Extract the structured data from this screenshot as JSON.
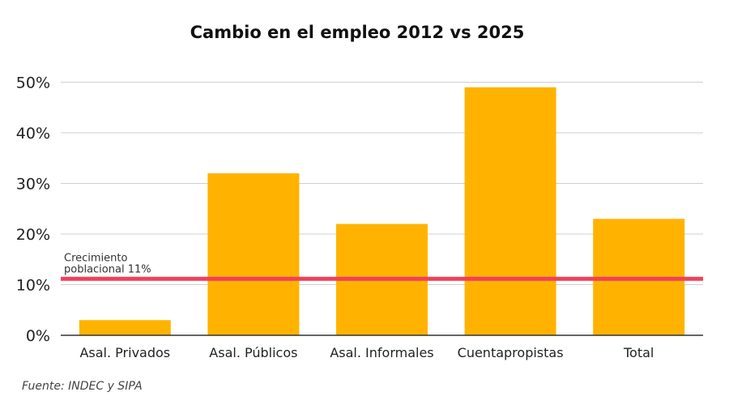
{
  "chart_data": {
    "type": "bar",
    "title": "Cambio en el empleo 2012 vs 2025",
    "categories": [
      "Asal. Privados",
      "Asal. Públicos",
      "Asal. Informales",
      "Cuentapropistas",
      "Total"
    ],
    "values": [
      3,
      32,
      22,
      49,
      23
    ],
    "unit": "%",
    "ylim": [
      0,
      50
    ],
    "yticks": [
      "0%",
      "10%",
      "20%",
      "30%",
      "40%",
      "50%"
    ],
    "ytick_values": [
      0,
      10,
      20,
      30,
      40,
      50
    ],
    "grid": true,
    "bar_color": "#FFB300",
    "reference_line": {
      "value": 11,
      "label_line1": "Crecimiento",
      "label_line2": "poblacional 11%",
      "color": "#F0405A"
    },
    "source": "Fuente: INDEC y SIPA"
  }
}
